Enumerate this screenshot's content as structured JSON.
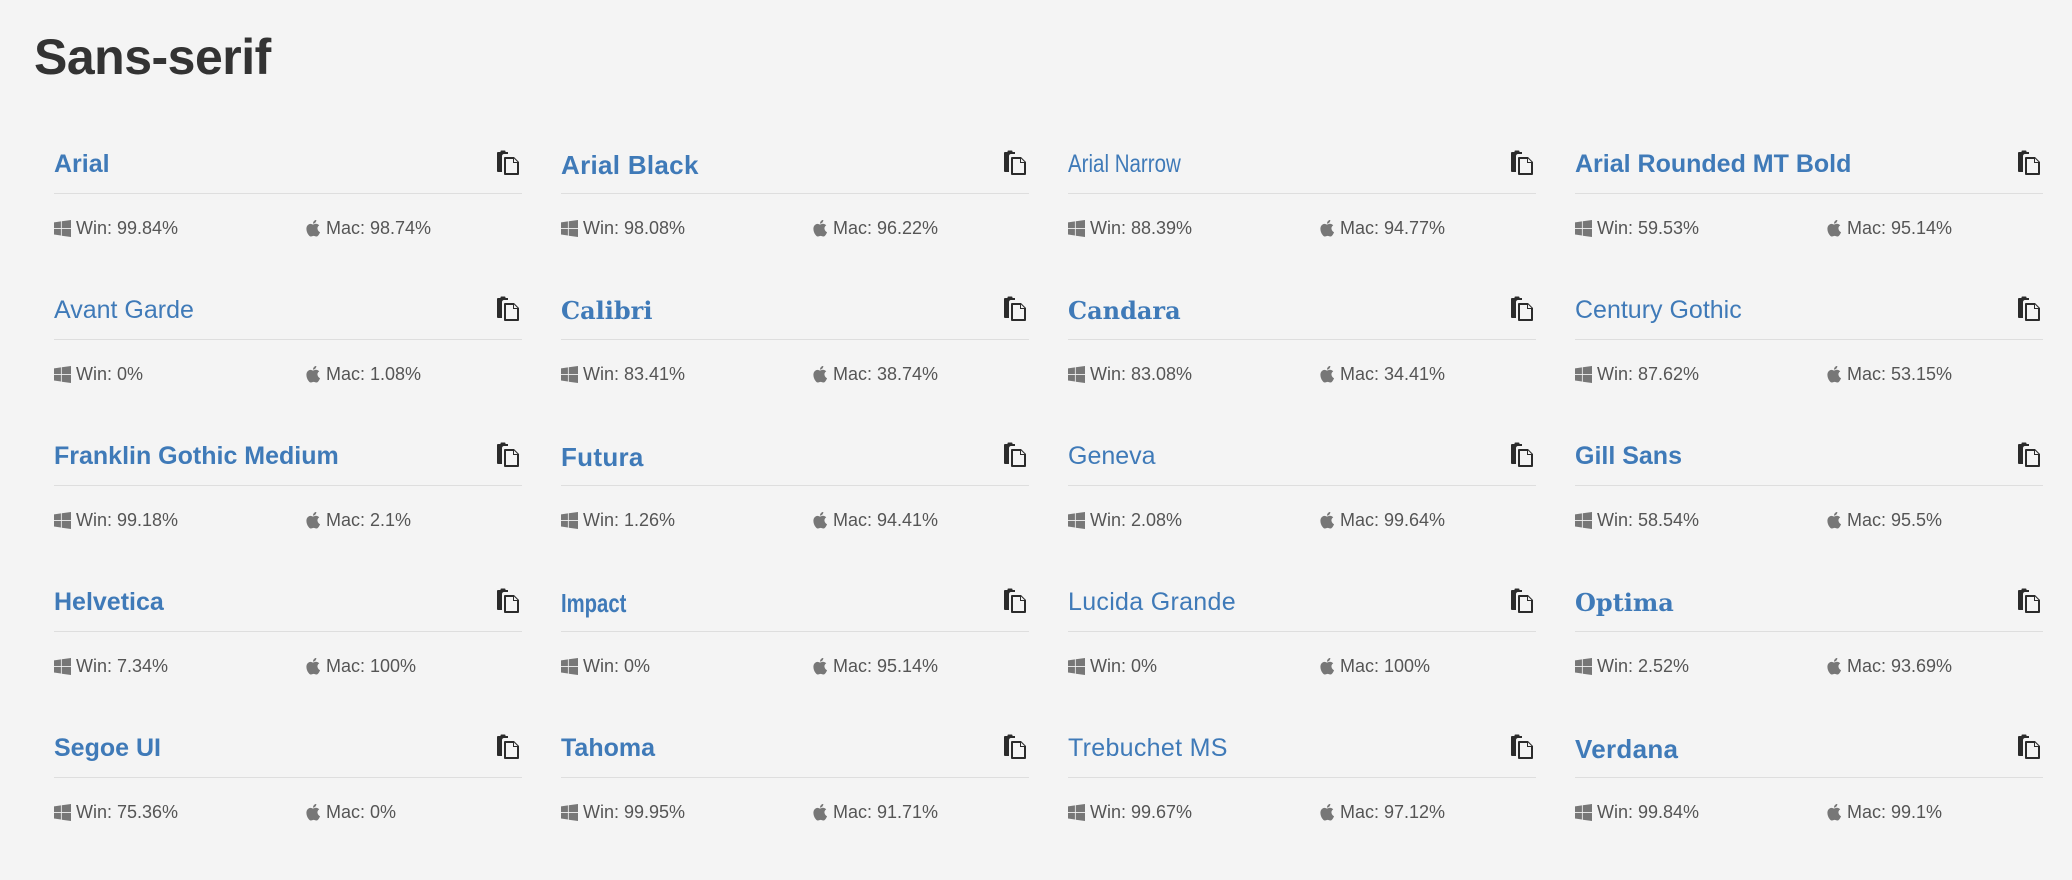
{
  "page": {
    "title": "Sans-serif"
  },
  "labels": {
    "win": "Win:",
    "mac": "Mac:"
  },
  "icons": {
    "windows": "windows-icon",
    "apple": "apple-icon",
    "copy": "copy-icon"
  },
  "colors": {
    "font_name": "#3f7ab8",
    "title": "#333333",
    "background": "#f4f4f4"
  },
  "fonts": [
    {
      "name": "Arial",
      "win": "99.84%",
      "mac": "98.74%",
      "style": "f-bold"
    },
    {
      "name": "Arial Black",
      "win": "98.08%",
      "mac": "96.22%",
      "style": "f-black"
    },
    {
      "name": "Arial Narrow",
      "win": "88.39%",
      "mac": "94.77%",
      "style": "f-narrow"
    },
    {
      "name": "Arial Rounded MT Bold",
      "win": "59.53%",
      "mac": "95.14%",
      "style": "f-bold"
    },
    {
      "name": "Avant Garde",
      "win": "0%",
      "mac": "1.08%",
      "style": "f-light"
    },
    {
      "name": "Calibri",
      "win": "83.41%",
      "mac": "38.74%",
      "style": "f-serifbold"
    },
    {
      "name": "Candara",
      "win": "83.08%",
      "mac": "34.41%",
      "style": "f-serifbold"
    },
    {
      "name": "Century Gothic",
      "win": "87.62%",
      "mac": "53.15%",
      "style": "f-light"
    },
    {
      "name": "Franklin Gothic Medium",
      "win": "99.18%",
      "mac": "2.1%",
      "style": "f-bold"
    },
    {
      "name": "Futura",
      "win": "1.26%",
      "mac": "94.41%",
      "style": "f-black"
    },
    {
      "name": "Geneva",
      "win": "2.08%",
      "mac": "99.64%",
      "style": "f-normal"
    },
    {
      "name": "Gill Sans",
      "win": "58.54%",
      "mac": "95.5%",
      "style": "f-bold"
    },
    {
      "name": "Helvetica",
      "win": "7.34%",
      "mac": "100%",
      "style": "f-bold"
    },
    {
      "name": "Impact",
      "win": "0%",
      "mac": "95.14%",
      "style": "f-impact"
    },
    {
      "name": "Lucida Grande",
      "win": "0%",
      "mac": "100%",
      "style": "f-mid"
    },
    {
      "name": "Optima",
      "win": "2.52%",
      "mac": "93.69%",
      "style": "f-serifbold"
    },
    {
      "name": "Segoe UI",
      "win": "75.36%",
      "mac": "0%",
      "style": "f-bold"
    },
    {
      "name": "Tahoma",
      "win": "99.95%",
      "mac": "91.71%",
      "style": "f-bold"
    },
    {
      "name": "Trebuchet MS",
      "win": "99.67%",
      "mac": "97.12%",
      "style": "f-mid"
    },
    {
      "name": "Verdana",
      "win": "99.84%",
      "mac": "99.1%",
      "style": "f-black"
    }
  ]
}
